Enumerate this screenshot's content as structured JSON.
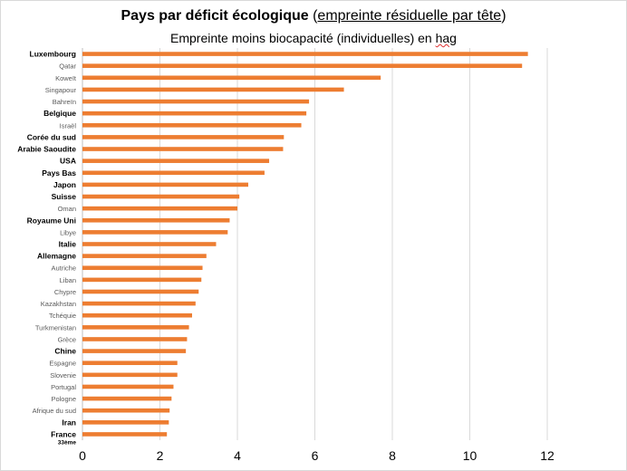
{
  "title": {
    "main": "Pays par déficit écologique",
    "paren_open": " (",
    "detail": "empreinte résiduelle par tête",
    "paren_close": ")"
  },
  "subtitle": {
    "before": "Empreinte moins biocapacité (individuelles) en ",
    "unit": "hag"
  },
  "colors": {
    "bar": "#ED7D31",
    "grid": "#d9d9d9",
    "axis": "#bfbfbf"
  },
  "chart_data": {
    "type": "bar",
    "orientation": "horizontal",
    "title": "Pays par déficit écologique (empreinte résiduelle par tête)",
    "subtitle": "Empreinte moins biocapacité (individuelles) en hag",
    "xlim": [
      0,
      12
    ],
    "xticks": [
      0,
      2,
      4,
      6,
      8,
      10,
      12
    ],
    "grid": true,
    "categories": [
      {
        "label": "Luxembourg",
        "bold": true
      },
      {
        "label": "Qatar",
        "bold": false
      },
      {
        "label": "Koweït",
        "bold": false
      },
      {
        "label": "Singapour",
        "bold": false
      },
      {
        "label": "Bahreïn",
        "bold": false
      },
      {
        "label": "Belgique",
        "bold": true
      },
      {
        "label": "Israël",
        "bold": false
      },
      {
        "label": "Corée du sud",
        "bold": true
      },
      {
        "label": "Arabie Saoudite",
        "bold": true
      },
      {
        "label": "USA",
        "bold": true
      },
      {
        "label": "Pays Bas",
        "bold": true
      },
      {
        "label": "Japon",
        "bold": true
      },
      {
        "label": "Suisse",
        "bold": true
      },
      {
        "label": "Oman",
        "bold": false
      },
      {
        "label": "Royaume Uni",
        "bold": true
      },
      {
        "label": "Libye",
        "bold": false
      },
      {
        "label": "Italie",
        "bold": true
      },
      {
        "label": "Allemagne",
        "bold": true
      },
      {
        "label": "Autriche",
        "bold": false
      },
      {
        "label": "Liban",
        "bold": false
      },
      {
        "label": "Chypre",
        "bold": false
      },
      {
        "label": "Kazakhstan",
        "bold": false
      },
      {
        "label": "Tchéquie",
        "bold": false
      },
      {
        "label": "Turkmenistan",
        "bold": false
      },
      {
        "label": "Grèce",
        "bold": false
      },
      {
        "label": "Chine",
        "bold": true
      },
      {
        "label": "Espagne",
        "bold": false
      },
      {
        "label": "Slovenie",
        "bold": false
      },
      {
        "label": "Portugal",
        "bold": false
      },
      {
        "label": "Pologne",
        "bold": false
      },
      {
        "label": "Afrique du sud",
        "bold": false
      },
      {
        "label": "Iran",
        "bold": true
      },
      {
        "label": "France",
        "bold": true,
        "note": "33ème"
      }
    ],
    "values": [
      11.5,
      11.35,
      7.7,
      6.75,
      5.85,
      5.78,
      5.65,
      5.2,
      5.18,
      4.82,
      4.7,
      4.28,
      4.05,
      4.0,
      3.8,
      3.75,
      3.45,
      3.2,
      3.1,
      3.07,
      3.0,
      2.92,
      2.83,
      2.75,
      2.7,
      2.67,
      2.45,
      2.45,
      2.35,
      2.3,
      2.25,
      2.23,
      2.18
    ]
  }
}
